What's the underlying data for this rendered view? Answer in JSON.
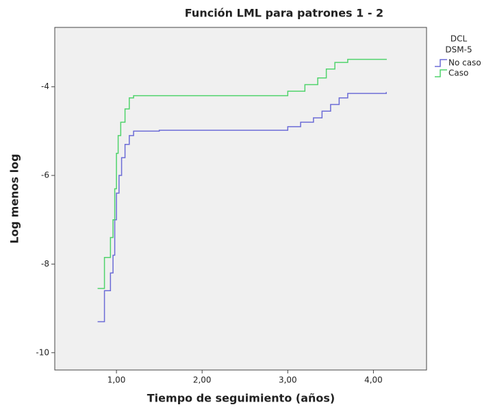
{
  "chart_data": {
    "type": "step",
    "title": "Función LML para patrones 1 - 2",
    "xlabel": "Tiempo de seguimiento (años)",
    "ylabel": "Log menos log",
    "legend_title": [
      "DCL",
      "DSM-5"
    ],
    "legend": "right",
    "series": [
      {
        "name": "No caso",
        "color": "#6b6bd6",
        "x": [
          0.78,
          0.86,
          0.93,
          0.96,
          0.98,
          1.0,
          1.03,
          1.06,
          1.1,
          1.15,
          1.2,
          1.5,
          3.0,
          3.15,
          3.3,
          3.4,
          3.5,
          3.6,
          3.7,
          4.15
        ],
        "values": [
          -9.3,
          -8.6,
          -8.2,
          -7.8,
          -7.0,
          -6.4,
          -6.0,
          -5.6,
          -5.3,
          -5.1,
          -5.0,
          -4.98,
          -4.9,
          -4.8,
          -4.7,
          -4.55,
          -4.4,
          -4.25,
          -4.15,
          -4.12
        ]
      },
      {
        "name": "Caso",
        "color": "#4fd36b",
        "x": [
          0.78,
          0.86,
          0.93,
          0.96,
          0.98,
          1.0,
          1.02,
          1.05,
          1.1,
          1.15,
          1.2,
          3.0,
          3.2,
          3.35,
          3.45,
          3.55,
          3.7,
          4.15
        ],
        "values": [
          -8.55,
          -7.85,
          -7.4,
          -7.0,
          -6.3,
          -5.5,
          -5.1,
          -4.8,
          -4.5,
          -4.25,
          -4.2,
          -4.1,
          -3.95,
          -3.8,
          -3.6,
          -3.45,
          -3.38,
          -3.37
        ]
      }
    ],
    "xlim": [
      0.28,
      4.62
    ],
    "xticks": [
      {
        "value": 1,
        "label": "1,00"
      },
      {
        "value": 2,
        "label": "2,00"
      },
      {
        "value": 3,
        "label": "3,00"
      },
      {
        "value": 4,
        "label": "4,00"
      }
    ],
    "ylim": [
      -10.39,
      -2.66
    ],
    "yticks": [
      -4,
      -6,
      -8,
      -10
    ],
    "grid": false
  }
}
